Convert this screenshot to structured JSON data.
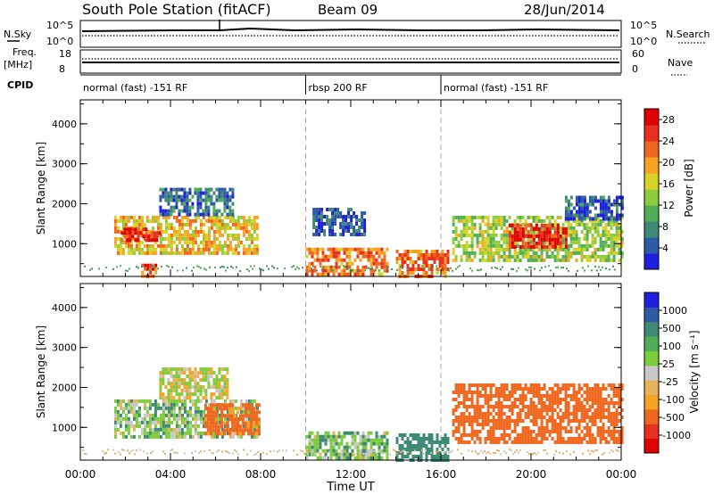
{
  "header": {
    "station": "South Pole Station (fitACF)",
    "beam": "Beam 09",
    "date": "28/Jun/2014"
  },
  "top_panels": {
    "nsky_label": "N.Sky",
    "nsky_ticks": [
      "10^5",
      "10^0"
    ],
    "nsearch_label": "N.Search",
    "nsearch_ticks": [
      "10^5",
      "10^0"
    ],
    "freq_label": "Freq.",
    "freq_unit": "[MHz]",
    "freq_ticks": [
      "18",
      "8"
    ],
    "nave_label": "Nave",
    "nave_ticks": [
      "60",
      "0"
    ],
    "cpid_label": "CPID",
    "cpid_segments": [
      {
        "label": "normal (fast) -151 RF",
        "start_hour": 0,
        "end_hour": 10
      },
      {
        "label": "rbsp 200 RF",
        "start_hour": 10,
        "end_hour": 16
      },
      {
        "label": "normal (fast) -151 RF",
        "start_hour": 16,
        "end_hour": 24
      }
    ]
  },
  "xaxis": {
    "title": "Time UT",
    "ticks": [
      "00:00",
      "04:00",
      "08:00",
      "12:00",
      "16:00",
      "20:00",
      "00:00"
    ]
  },
  "colors": {
    "power_scale": [
      "#1f1fe0",
      "#2e5ba6",
      "#3f8a74",
      "#4fae56",
      "#8fcc3a",
      "#d9d226",
      "#f7a223",
      "#f06820",
      "#e8301f",
      "#e00000"
    ],
    "velocity_scale": [
      "#e00000",
      "#e8301f",
      "#f06820",
      "#f7a223",
      "#e8b25c",
      "#c8c8c8",
      "#7ccc3c",
      "#4fae56",
      "#3f8a74",
      "#2e5ba6",
      "#1f1fe0"
    ]
  },
  "chart_data": [
    {
      "type": "heatmap",
      "name": "power",
      "ylabel": "Slant Range [km]",
      "yticks": [
        "1000",
        "2000",
        "3000",
        "4000"
      ],
      "ylim": [
        180,
        4600
      ],
      "xlim": [
        0,
        24
      ],
      "colorbar_label": "Power [dB]",
      "colorbar_ticks": [
        "4",
        "8",
        "12",
        "16",
        "20",
        "24",
        "28"
      ],
      "colorbar_range": [
        0,
        30
      ],
      "blobs": [
        {
          "t0": 1.5,
          "t1": 7.9,
          "r0": 800,
          "r1": 1700,
          "level": 18
        },
        {
          "t0": 1.8,
          "t1": 3.5,
          "r0": 1100,
          "r1": 1400,
          "level": 27
        },
        {
          "t0": 3.5,
          "t1": 6.8,
          "r0": 1700,
          "r1": 2400,
          "level": 6
        },
        {
          "t0": 2.7,
          "t1": 3.4,
          "r0": 200,
          "r1": 500,
          "level": 24
        },
        {
          "t0": 10.0,
          "t1": 13.6,
          "r0": 200,
          "r1": 900,
          "level": 22
        },
        {
          "t0": 10.3,
          "t1": 12.6,
          "r0": 1200,
          "r1": 1900,
          "level": 4
        },
        {
          "t0": 14.0,
          "t1": 16.3,
          "r0": 200,
          "r1": 850,
          "level": 22
        },
        {
          "t0": 16.5,
          "t1": 24.0,
          "r0": 600,
          "r1": 1700,
          "level": 14
        },
        {
          "t0": 19.0,
          "t1": 21.5,
          "r0": 900,
          "r1": 1500,
          "level": 27
        },
        {
          "t0": 21.5,
          "t1": 24.0,
          "r0": 1600,
          "r1": 2200,
          "level": 5
        }
      ]
    },
    {
      "type": "heatmap",
      "name": "velocity",
      "ylabel": "Slant Range [km]",
      "yticks": [
        "1000",
        "2000",
        "3000",
        "4000"
      ],
      "ylim": [
        180,
        4600
      ],
      "xlim": [
        0,
        24
      ],
      "colorbar_label": "Velocity [m s⁻¹]",
      "colorbar_ticks": [
        "1000",
        "500",
        "100",
        "25",
        "-25",
        "-100",
        "-500",
        "-1000"
      ],
      "colorbar_range": [
        -1000,
        1000
      ],
      "blobs": [
        {
          "t0": 1.5,
          "t1": 7.9,
          "r0": 800,
          "r1": 1700,
          "level": 60
        },
        {
          "t0": 3.5,
          "t1": 6.5,
          "r0": 1700,
          "r1": 2500,
          "level": 5
        },
        {
          "t0": 5.5,
          "t1": 7.9,
          "r0": 800,
          "r1": 1600,
          "level": -150
        },
        {
          "t0": 10.0,
          "t1": 13.6,
          "r0": 200,
          "r1": 900,
          "level": 70
        },
        {
          "t0": 14.0,
          "t1": 16.3,
          "r0": 200,
          "r1": 850,
          "level": 250
        },
        {
          "t0": 16.5,
          "t1": 24.0,
          "r0": 600,
          "r1": 2100,
          "level": -200
        }
      ]
    }
  ]
}
